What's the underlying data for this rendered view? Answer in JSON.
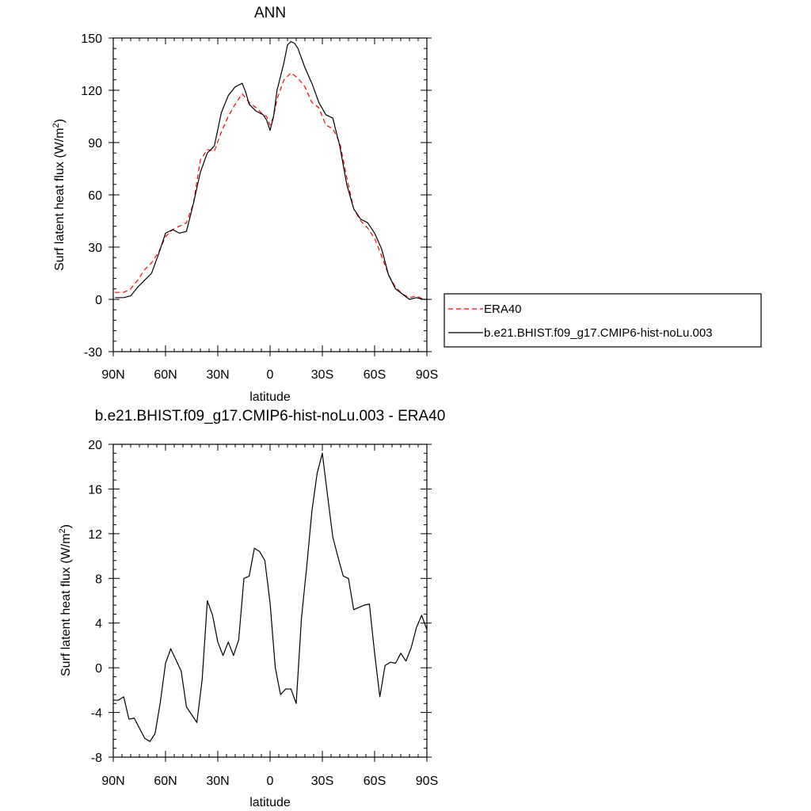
{
  "chart_data": [
    {
      "type": "line",
      "title": "ANN",
      "xlabel": "latitude",
      "ylabel": "Surf latent heat flux (W/m",
      "ylabel_sup": "2",
      "ylabel_end": ")",
      "xlim": [
        90,
        -90
      ],
      "ylim": [
        -30,
        150
      ],
      "xticks": [
        90,
        60,
        30,
        0,
        -30,
        -60,
        -90
      ],
      "xtick_labels": [
        "90N",
        "60N",
        "30N",
        "0",
        "30S",
        "60S",
        "90S"
      ],
      "yticks": [
        -30,
        0,
        30,
        60,
        90,
        120,
        150
      ],
      "grid": false,
      "legend": "outside-right",
      "series": [
        {
          "name": "ERA40",
          "color": "#ff0000",
          "dash": "dashed",
          "x": [
            89,
            84,
            80,
            76,
            72,
            68,
            64,
            60,
            56,
            52,
            48,
            44,
            40,
            36,
            32,
            28,
            24,
            20,
            16,
            12,
            8,
            4,
            2,
            0,
            -2,
            -4,
            -8,
            -12,
            -16,
            -20,
            -24,
            -28,
            -32,
            -36,
            -40,
            -44,
            -48,
            -52,
            -56,
            -60,
            -64,
            -68,
            -72,
            -76,
            -80,
            -84,
            -88,
            -90
          ],
          "y": [
            4,
            4,
            6,
            11,
            17,
            21,
            27,
            36,
            40,
            42,
            44,
            55,
            80,
            86,
            85,
            96,
            105,
            112,
            118,
            113,
            110,
            106,
            105,
            100,
            105,
            115,
            126,
            130,
            127,
            122,
            113,
            110,
            100,
            98,
            90,
            70,
            52,
            45,
            41,
            35,
            25,
            14,
            7,
            3,
            1,
            2,
            0,
            0
          ]
        },
        {
          "name": "b.e21.BHIST.f09_g17.CMIP6-hist-noLu.003",
          "color": "#000000",
          "dash": "solid",
          "x": [
            89,
            84,
            80,
            76,
            72,
            68,
            64,
            60,
            56,
            52,
            48,
            44,
            40,
            36,
            32,
            28,
            24,
            20,
            16,
            14,
            12,
            8,
            4,
            2,
            0,
            -2,
            -4,
            -8,
            -10,
            -12,
            -14,
            -16,
            -20,
            -24,
            -28,
            -32,
            -36,
            -40,
            -44,
            -48,
            -52,
            -56,
            -60,
            -64,
            -68,
            -72,
            -76,
            -80,
            -84,
            -88,
            -90
          ],
          "y": [
            1,
            1,
            2,
            7,
            11,
            15,
            26,
            38,
            40,
            38,
            39,
            55,
            73,
            84,
            88,
            107,
            117,
            122,
            124,
            119,
            112,
            108,
            106,
            103,
            97,
            105,
            120,
            136,
            146,
            148,
            147,
            144,
            133,
            124,
            113,
            106,
            104,
            88,
            66,
            52,
            46,
            44,
            38,
            29,
            14,
            6,
            3,
            0,
            1,
            0,
            0
          ]
        }
      ]
    },
    {
      "type": "line",
      "title": "b.e21.BHIST.f09_g17.CMIP6-hist-noLu.003 - ERA40",
      "xlabel": "latitude",
      "ylabel": "Surf latent heat flux (W/m",
      "ylabel_sup": "2",
      "ylabel_end": ")",
      "xlim": [
        90,
        -90
      ],
      "ylim": [
        -8,
        20
      ],
      "xticks": [
        90,
        60,
        30,
        0,
        -30,
        -60,
        -90
      ],
      "xtick_labels": [
        "90N",
        "60N",
        "30N",
        "0",
        "30S",
        "60S",
        "90S"
      ],
      "yticks": [
        -8,
        -4,
        0,
        4,
        8,
        12,
        16,
        20
      ],
      "grid": false,
      "series": [
        {
          "color": "#000000",
          "dash": "solid",
          "x": [
            90,
            87,
            84,
            81,
            78,
            75,
            72,
            69,
            66,
            63,
            60,
            57,
            54,
            51,
            48,
            45,
            42,
            39,
            36,
            33,
            30,
            27,
            24,
            21,
            18,
            15,
            12,
            9,
            6,
            3,
            0,
            -3,
            -6,
            -9,
            -12,
            -15,
            -18,
            -21,
            -24,
            -27,
            -30,
            -33,
            -36,
            -39,
            -42,
            -45,
            -48,
            -51,
            -54,
            -57,
            -60,
            -63,
            -66,
            -69,
            -72,
            -75,
            -78,
            -81,
            -84,
            -87,
            -90
          ],
          "y": [
            -2.9,
            -2.9,
            -2.6,
            -4.6,
            -4.5,
            -5.4,
            -6.3,
            -6.6,
            -5.9,
            -3.1,
            0.4,
            1.7,
            0.7,
            -0.3,
            -3.5,
            -4.2,
            -4.9,
            -1.1,
            6.0,
            4.7,
            2.3,
            1.1,
            2.3,
            1.1,
            2.5,
            8.0,
            8.2,
            10.7,
            10.4,
            9.6,
            5.8,
            0.0,
            -2.4,
            -1.9,
            -1.9,
            -3.2,
            4.4,
            9.0,
            14.0,
            17.4,
            19.2,
            15.4,
            11.7,
            9.9,
            8.2,
            8.0,
            5.2,
            5.4,
            5.6,
            5.7,
            1.3,
            -2.6,
            0.2,
            0.5,
            0.4,
            1.3,
            0.6,
            1.8,
            3.6,
            4.7,
            3.4
          ]
        }
      ]
    }
  ]
}
